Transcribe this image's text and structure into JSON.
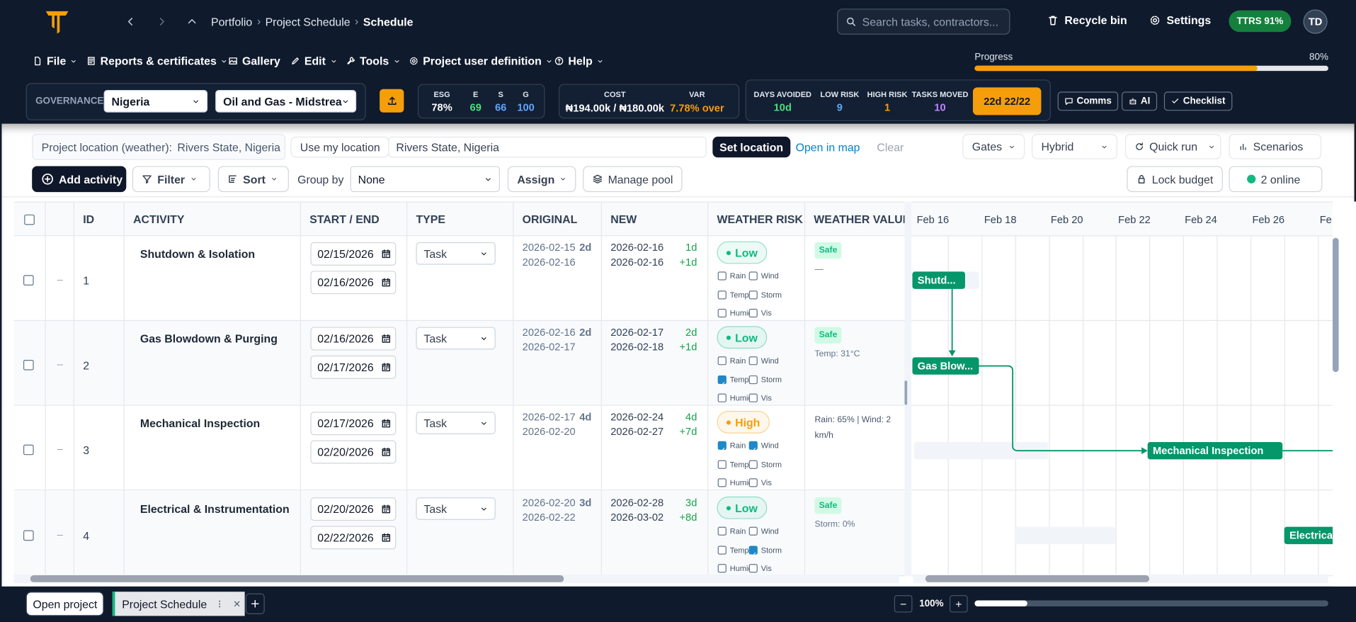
{
  "header": {
    "breadcrumb": [
      "Portfolio",
      "Project Schedule",
      "Schedule"
    ],
    "search_placeholder": "Search tasks, contractors...",
    "recycle_bin": "Recycle bin",
    "settings": "Settings",
    "ttrs": "TTRS 91%",
    "avatar": "TD"
  },
  "menu": {
    "items": [
      "File",
      "Reports & certificates",
      "Gallery",
      "Edit",
      "Tools",
      "Project user definition",
      "Help"
    ],
    "progress_label": "Progress",
    "progress_value": "80%"
  },
  "governance": {
    "label": "GOVERNANCE",
    "country": "Nigeria",
    "sector": "Oil and Gas - Midstrea",
    "esg": [
      {
        "label": "ESG",
        "value": "78%",
        "color": "#ffffff"
      },
      {
        "label": "E",
        "value": "69",
        "color": "#4ade80"
      },
      {
        "label": "S",
        "value": "66",
        "color": "#60a5fa"
      },
      {
        "label": "G",
        "value": "100",
        "color": "#60a5fa"
      }
    ],
    "cost_label": "COST",
    "cost_value": "₦194.00k / ₦180.00k",
    "var_label": "VAR",
    "var_value": "7.78% over",
    "stats": [
      {
        "label": "DAYS AVOIDED",
        "value": "10d",
        "color": "#4ade80"
      },
      {
        "label": "LOW RISK",
        "value": "9",
        "color": "#60a5fa"
      },
      {
        "label": "HIGH RISK",
        "value": "1",
        "color": "#f59e0b"
      },
      {
        "label": "TASKS MOVED",
        "value": "10",
        "color": "#c084fc"
      }
    ],
    "badge": "22d 22/22",
    "buttons": [
      "Comms",
      "AI",
      "Checklist"
    ]
  },
  "location": {
    "label": "Project location (weather):",
    "current": "Rivers State, Nigeria",
    "use_my_location": "Use my location",
    "input": "Rivers State, Nigeria",
    "set_location": "Set location",
    "open_in_map": "Open in map",
    "clear": "Clear",
    "controls": [
      "Gates",
      "Hybrid",
      "Quick run",
      "Scenarios"
    ]
  },
  "toolbar": {
    "add_activity": "Add activity",
    "filter": "Filter",
    "sort": "Sort",
    "group_by_label": "Group by",
    "group_by": "None",
    "assign": "Assign",
    "manage_pool": "Manage pool",
    "lock_budget": "Lock budget",
    "online": "2 online"
  },
  "table": {
    "columns": [
      "ID",
      "ACTIVITY",
      "START / END",
      "TYPE",
      "ORIGINAL",
      "NEW",
      "WEATHER RISK",
      "WEATHER VALUE"
    ],
    "collapse": "–",
    "weather_flags": [
      "Rain",
      "Wind",
      "Temp",
      "Storm",
      "Humid",
      "Vis"
    ],
    "rows": [
      {
        "id": 1,
        "activity": "Shutdown & Isolation",
        "start": "02/15/2026",
        "end": "02/16/2026",
        "type": "Task",
        "original": {
          "start": "2026-02-15",
          "duration": "2d",
          "end": "2026-02-16"
        },
        "new": {
          "start": "2026-02-16",
          "duration": "1d",
          "end": "2026-02-16",
          "shift": "+1d"
        },
        "risk": "Low",
        "risk_color": "#10b981",
        "flags": [
          false,
          false,
          false,
          false,
          false,
          false
        ],
        "safe": "Safe",
        "weather_value": "—"
      },
      {
        "id": 2,
        "activity": "Gas Blowdown & Purging",
        "start": "02/16/2026",
        "end": "02/17/2026",
        "type": "Task",
        "original": {
          "start": "2026-02-16",
          "duration": "2d",
          "end": "2026-02-17"
        },
        "new": {
          "start": "2026-02-17",
          "duration": "2d",
          "end": "2026-02-18",
          "shift": "+1d"
        },
        "risk": "Low",
        "risk_color": "#10b981",
        "flags": [
          false,
          false,
          true,
          false,
          false,
          false
        ],
        "safe": "Safe",
        "weather_value": "Temp: 31°C"
      },
      {
        "id": 3,
        "activity": "Mechanical Inspection",
        "start": "02/17/2026",
        "end": "02/20/2026",
        "type": "Task",
        "original": {
          "start": "2026-02-17",
          "duration": "4d",
          "end": "2026-02-20"
        },
        "new": {
          "start": "2026-02-24",
          "duration": "4d",
          "end": "2026-02-27",
          "shift": "+7d"
        },
        "risk": "High",
        "risk_color": "#f59e0b",
        "flags": [
          true,
          true,
          false,
          false,
          false,
          false
        ],
        "weather_value": "Rain: 65% | Wind: 2 km/h"
      },
      {
        "id": 4,
        "activity": "Electrical & Instrumentation T",
        "start": "02/20/2026",
        "end": "02/22/2026",
        "type": "Task",
        "original": {
          "start": "2026-02-20",
          "duration": "3d",
          "end": "2026-02-22"
        },
        "new": {
          "start": "2026-02-28",
          "duration": "3d",
          "end": "2026-03-02",
          "shift": "+8d"
        },
        "risk": "Low",
        "risk_color": "#10b981",
        "flags": [
          false,
          false,
          false,
          true,
          false,
          false
        ],
        "safe": "Safe",
        "weather_value": "Storm: 0%"
      }
    ]
  },
  "gantt": {
    "dates": [
      "Feb 16",
      "Feb 18",
      "Feb 20",
      "Feb 22",
      "Feb 24",
      "Feb 26",
      "Fe"
    ],
    "bars": [
      "Shutd...",
      "Gas Blow...",
      "Mechanical Inspection",
      "Electrical"
    ],
    "bar_color": "#059669"
  },
  "footer": {
    "open_project": "Open project",
    "tab": "Project Schedule",
    "zoom": "100%"
  }
}
